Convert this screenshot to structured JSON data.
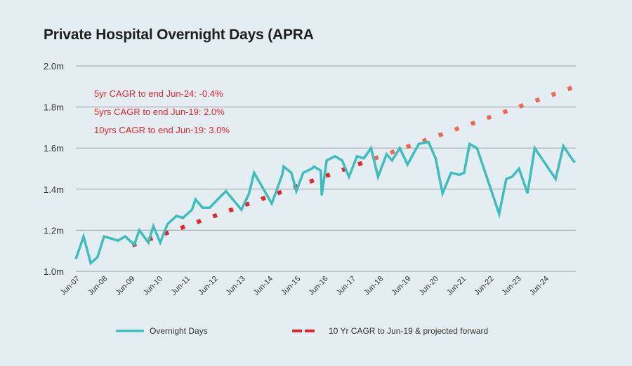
{
  "chart_data": {
    "type": "line",
    "title": "Private Hospital Overnight Days (APRA",
    "xlabel": "",
    "ylabel": "",
    "ylim": [
      1.0,
      2.0
    ],
    "y_unit_suffix": "m",
    "y_ticks": [
      "1.0m",
      "1.2m",
      "1.4m",
      "1.6m",
      "1.8m",
      "2.0m"
    ],
    "y_tick_values": [
      1.0,
      1.2,
      1.4,
      1.6,
      1.8,
      2.0
    ],
    "grid": "horizontal",
    "x_tick_labels": [
      "Jun-07",
      "Jun-08",
      "Jun-09",
      "Jun-10",
      "Jun-11",
      "Jun-12",
      "Jun-13",
      "Jun-14",
      "Jun-15",
      "Jun-16",
      "Jun-17",
      "Jun-18",
      "Jun-19",
      "Jun-20",
      "Jun-21",
      "Jun-22",
      "Jun-23",
      "Jun-24"
    ],
    "x_range_years": [
      2007.5,
      2025.5
    ],
    "annotations": [
      "5yr CAGR to end Jun-24: -0.4%",
      "5yrs CAGR to end Jun-19: 2.0%",
      "10yrs CAGR to end Jun-19: 3.0%"
    ],
    "legend_position": "bottom",
    "colors": {
      "overnight": "#3dbdbd",
      "cagr": "#e3262e",
      "grid": "#a9aeb2",
      "background": "#e4eef2"
    },
    "series": [
      {
        "name": "Overnight Days",
        "style": "solid",
        "points": [
          [
            2007.5,
            1.06
          ],
          [
            2007.78,
            1.17
          ],
          [
            2008.04,
            1.04
          ],
          [
            2008.29,
            1.07
          ],
          [
            2008.52,
            1.17
          ],
          [
            2009.03,
            1.15
          ],
          [
            2009.29,
            1.17
          ],
          [
            2009.62,
            1.13
          ],
          [
            2009.8,
            1.2
          ],
          [
            2010.13,
            1.14
          ],
          [
            2010.31,
            1.22
          ],
          [
            2010.56,
            1.14
          ],
          [
            2010.82,
            1.23
          ],
          [
            2011.15,
            1.27
          ],
          [
            2011.38,
            1.26
          ],
          [
            2011.71,
            1.3
          ],
          [
            2011.84,
            1.35
          ],
          [
            2012.09,
            1.31
          ],
          [
            2012.35,
            1.31
          ],
          [
            2012.71,
            1.36
          ],
          [
            2012.94,
            1.39
          ],
          [
            2013.19,
            1.35
          ],
          [
            2013.5,
            1.3
          ],
          [
            2013.78,
            1.38
          ],
          [
            2013.96,
            1.48
          ],
          [
            2014.6,
            1.33
          ],
          [
            2014.98,
            1.47
          ],
          [
            2015.03,
            1.51
          ],
          [
            2015.31,
            1.48
          ],
          [
            2015.49,
            1.39
          ],
          [
            2015.74,
            1.48
          ],
          [
            2016.05,
            1.5
          ],
          [
            2016.13,
            1.51
          ],
          [
            2016.38,
            1.49
          ],
          [
            2016.41,
            1.37
          ],
          [
            2016.59,
            1.54
          ],
          [
            2016.89,
            1.56
          ],
          [
            2017.15,
            1.54
          ],
          [
            2017.4,
            1.46
          ],
          [
            2017.69,
            1.56
          ],
          [
            2017.94,
            1.55
          ],
          [
            2018.2,
            1.6
          ],
          [
            2018.45,
            1.46
          ],
          [
            2018.76,
            1.57
          ],
          [
            2018.96,
            1.54
          ],
          [
            2019.24,
            1.6
          ],
          [
            2019.52,
            1.52
          ],
          [
            2019.93,
            1.62
          ],
          [
            2020.28,
            1.63
          ],
          [
            2020.54,
            1.55
          ],
          [
            2020.79,
            1.38
          ],
          [
            2021.1,
            1.48
          ],
          [
            2021.4,
            1.47
          ],
          [
            2021.57,
            1.48
          ],
          [
            2021.77,
            1.62
          ],
          [
            2022.04,
            1.6
          ],
          [
            2022.84,
            1.28
          ],
          [
            2023.1,
            1.45
          ],
          [
            2023.31,
            1.46
          ],
          [
            2023.56,
            1.5
          ],
          [
            2023.87,
            1.38
          ],
          [
            2024.13,
            1.6
          ],
          [
            2024.89,
            1.45
          ],
          [
            2025.17,
            1.61
          ],
          [
            2025.52,
            1.54
          ],
          [
            2025.59,
            1.53
          ]
        ]
      },
      {
        "name": "10 Yr CAGR to Jun-19 & projected forward",
        "style": "dotted",
        "start": [
          2009.62,
          1.13
        ],
        "end": [
          2025.4,
          1.89
        ]
      }
    ]
  },
  "legend": {
    "overnight_label": "Overnight Days",
    "cagr_label": "10 Yr CAGR to Jun-19 & projected forward"
  }
}
